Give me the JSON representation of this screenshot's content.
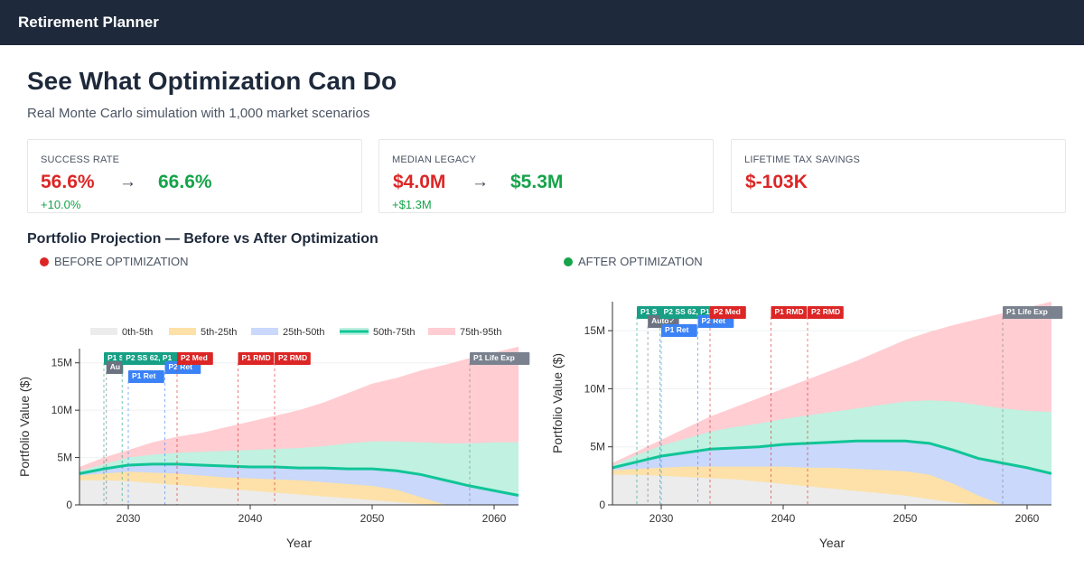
{
  "app": {
    "title": "Retirement Planner"
  },
  "header": {
    "title": "See What Optimization Can Do",
    "subtitle": "Real Monte Carlo simulation with 1,000 market scenarios"
  },
  "cards": {
    "success": {
      "label": "SUCCESS RATE",
      "before": "56.6%",
      "arrow": "→",
      "after": "66.6%",
      "delta": "+10.0%"
    },
    "legacy": {
      "label": "MEDIAN LEGACY",
      "before": "$4.0M",
      "arrow": "→",
      "after": "$5.3M",
      "delta": "+$1.3M"
    },
    "tax": {
      "label": "LIFETIME TAX SAVINGS",
      "value": "$-103K"
    }
  },
  "section": {
    "title": "Portfolio Projection — Before vs After Optimization"
  },
  "panels": {
    "before": {
      "label": "BEFORE OPTIMIZATION",
      "dot_color": "#dc2626"
    },
    "after": {
      "label": "AFTER OPTIMIZATION",
      "dot_color": "#16a34a"
    }
  },
  "colors": {
    "band_0_5": "#ececec",
    "band_5_25": "#fde1a8",
    "band_25_50": "#c9d8fb",
    "band_50_75": "#c0f1e1",
    "band_75_95": "#ffcdd2",
    "median": "#10c596",
    "milestone_green": "#16a085",
    "milestone_gray": "#6b7280",
    "milestone_blue": "#3b82f6",
    "milestone_red": "#dc2626",
    "milestone_slate": "#7b828f"
  },
  "chart_data": [
    {
      "type": "area",
      "xlabel": "Year",
      "ylabel": "Portfolio Value ($)",
      "xlim": [
        2026,
        2062
      ],
      "ylim": [
        0,
        16.5
      ],
      "x_ticks": [
        2030,
        2040,
        2050,
        2060
      ],
      "y_ticks": [
        0,
        5,
        10,
        15
      ],
      "y_tick_labels": [
        "0",
        "5M",
        "10M",
        "15M"
      ],
      "legend": [
        "0th-5th",
        "5th-25th",
        "25th-50th",
        "50th-75th",
        "75th-95th"
      ],
      "x": [
        2026,
        2028,
        2030,
        2032,
        2034,
        2036,
        2038,
        2040,
        2042,
        2044,
        2046,
        2048,
        2050,
        2052,
        2054,
        2056,
        2058,
        2060,
        2062
      ],
      "series": [
        {
          "name": "0th-5th",
          "values": [
            2.6,
            2.6,
            2.5,
            2.3,
            2.1,
            1.9,
            1.7,
            1.5,
            1.3,
            1.1,
            0.9,
            0.7,
            0.5,
            0.3,
            0.1,
            0,
            0,
            0,
            0
          ]
        },
        {
          "name": "5th-25th",
          "values": [
            3.1,
            3.3,
            3.5,
            3.4,
            3.3,
            3.1,
            2.9,
            2.8,
            2.7,
            2.6,
            2.4,
            2.2,
            2.0,
            1.6,
            0.8,
            0,
            0,
            0,
            0
          ]
        },
        {
          "name": "25th-50th",
          "values": [
            3.3,
            3.8,
            4.2,
            4.3,
            4.3,
            4.2,
            4.1,
            4.0,
            4.0,
            3.9,
            3.9,
            3.8,
            3.8,
            3.6,
            3.2,
            2.6,
            2.0,
            1.5,
            1.0
          ]
        },
        {
          "name": "50th-75th",
          "values": [
            3.6,
            4.3,
            5.0,
            5.3,
            5.5,
            5.6,
            5.7,
            5.8,
            5.9,
            6.0,
            6.2,
            6.5,
            6.7,
            6.7,
            6.6,
            6.5,
            6.5,
            6.6,
            6.6
          ]
        },
        {
          "name": "75th-95th",
          "values": [
            4.0,
            5.0,
            5.8,
            6.6,
            7.2,
            7.6,
            8.2,
            8.8,
            9.4,
            10.0,
            10.8,
            11.8,
            12.8,
            13.4,
            14.2,
            14.8,
            15.5,
            16.1,
            16.7
          ]
        }
      ],
      "median": [
        3.3,
        3.8,
        4.2,
        4.3,
        4.3,
        4.2,
        4.1,
        4.0,
        4.0,
        3.9,
        3.9,
        3.8,
        3.8,
        3.6,
        3.2,
        2.6,
        2.0,
        1.5,
        1.0
      ],
      "milestones": [
        {
          "label": "P1 S",
          "year": 2028,
          "row": 0,
          "kind": "green"
        },
        {
          "label": "Au",
          "year": 2028.2,
          "row": 1,
          "kind": "gray"
        },
        {
          "label": "P2 SS 62, P1",
          "year": 2029.5,
          "row": 0,
          "kind": "green"
        },
        {
          "label": "P1 Ret",
          "year": 2030,
          "row": 2,
          "kind": "blue"
        },
        {
          "label": "P2 Ret",
          "year": 2033,
          "row": 1,
          "kind": "blue"
        },
        {
          "label": "P2 Med",
          "year": 2034,
          "row": 0,
          "kind": "red"
        },
        {
          "label": "P1 RMD",
          "year": 2039,
          "row": 0,
          "kind": "red"
        },
        {
          "label": "P2 RMD",
          "year": 2042,
          "row": 0,
          "kind": "red"
        },
        {
          "label": "P1 Life Exp",
          "year": 2058,
          "row": 0,
          "kind": "slate"
        }
      ]
    },
    {
      "type": "area",
      "xlabel": "Year",
      "ylabel": "Portfolio Value ($)",
      "xlim": [
        2026,
        2062
      ],
      "ylim": [
        0,
        17.5
      ],
      "x_ticks": [
        2030,
        2040,
        2050,
        2060
      ],
      "y_ticks": [
        0,
        5,
        10,
        15
      ],
      "y_tick_labels": [
        "0",
        "5M",
        "10M",
        "15M"
      ],
      "x": [
        2026,
        2028,
        2030,
        2032,
        2034,
        2036,
        2038,
        2040,
        2042,
        2044,
        2046,
        2048,
        2050,
        2052,
        2054,
        2056,
        2058,
        2060,
        2062
      ],
      "series": [
        {
          "name": "0th-5th",
          "values": [
            2.6,
            2.6,
            2.5,
            2.4,
            2.3,
            2.2,
            2.0,
            1.8,
            1.6,
            1.4,
            1.2,
            1.0,
            0.8,
            0.5,
            0.2,
            0,
            0,
            0,
            0
          ]
        },
        {
          "name": "5th-25th",
          "values": [
            3.0,
            3.1,
            3.2,
            3.3,
            3.3,
            3.3,
            3.3,
            3.3,
            3.2,
            3.2,
            3.1,
            3.0,
            2.9,
            2.6,
            1.8,
            0.8,
            0,
            0,
            0
          ]
        },
        {
          "name": "25th-50th",
          "values": [
            3.2,
            3.7,
            4.2,
            4.5,
            4.8,
            4.9,
            5.0,
            5.2,
            5.3,
            5.4,
            5.5,
            5.5,
            5.5,
            5.3,
            4.7,
            4.0,
            3.6,
            3.2,
            2.7
          ]
        },
        {
          "name": "50th-75th",
          "values": [
            3.4,
            4.3,
            5.1,
            5.7,
            6.3,
            6.7,
            7.0,
            7.4,
            7.7,
            8.0,
            8.3,
            8.6,
            8.9,
            9.0,
            8.9,
            8.6,
            8.3,
            8.1,
            8.0
          ]
        },
        {
          "name": "75th-95th",
          "values": [
            3.6,
            4.6,
            5.6,
            6.6,
            7.6,
            8.4,
            9.2,
            10.0,
            10.8,
            11.6,
            12.4,
            13.3,
            14.2,
            14.9,
            15.5,
            16.0,
            16.5,
            17.0,
            17.5
          ]
        }
      ],
      "median": [
        3.2,
        3.7,
        4.2,
        4.5,
        4.8,
        4.9,
        5.0,
        5.2,
        5.3,
        5.4,
        5.5,
        5.5,
        5.5,
        5.3,
        4.7,
        4.0,
        3.6,
        3.2,
        2.7
      ],
      "milestones": [
        {
          "label": "P1 S",
          "year": 2028,
          "row": 0,
          "kind": "green"
        },
        {
          "label": "Auto✓",
          "year": 2028.9,
          "row": 1,
          "kind": "gray"
        },
        {
          "label": "P2 SS 62, P1",
          "year": 2029.9,
          "row": 0,
          "kind": "green"
        },
        {
          "label": "P1 Ret",
          "year": 2030,
          "row": 2,
          "kind": "blue"
        },
        {
          "label": "P2 Ret",
          "year": 2033,
          "row": 1,
          "kind": "blue"
        },
        {
          "label": "P2 Med",
          "year": 2034,
          "row": 0,
          "kind": "red"
        },
        {
          "label": "P1 RMD",
          "year": 2039,
          "row": 0,
          "kind": "red"
        },
        {
          "label": "P2 RMD",
          "year": 2042,
          "row": 0,
          "kind": "red"
        },
        {
          "label": "P1 Life Exp",
          "year": 2058,
          "row": 0,
          "kind": "slate"
        }
      ]
    }
  ]
}
